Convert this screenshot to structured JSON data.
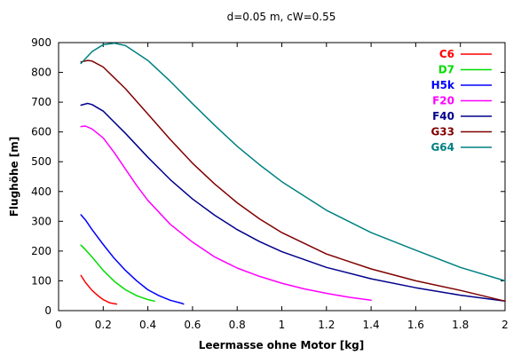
{
  "chart_data": {
    "type": "line",
    "title": "d=0.05 m, cW=0.55",
    "xlabel": "Leermasse ohne Motor [kg]",
    "ylabel": "Flughöhe [m]",
    "xlim": [
      0,
      2
    ],
    "ylim": [
      0,
      900
    ],
    "xticks": [
      0,
      0.2,
      0.4,
      0.6,
      0.8,
      1,
      1.2,
      1.4,
      1.6,
      1.8,
      2
    ],
    "xtick_labels": [
      "0",
      "0.2",
      "0.4",
      "0.6",
      "0.8",
      "1",
      "1.2",
      "1.4",
      "1.6",
      "1.8",
      "2"
    ],
    "yticks": [
      0,
      100,
      200,
      300,
      400,
      500,
      600,
      700,
      800,
      900
    ],
    "ytick_labels": [
      "0",
      "100",
      "200",
      "300",
      "400",
      "500",
      "600",
      "700",
      "800",
      "900"
    ],
    "grid": false,
    "legend_position": "top-right",
    "series": [
      {
        "name": "C6",
        "color": "#ff0000",
        "x": [
          0.1,
          0.12,
          0.15,
          0.18,
          0.2,
          0.23,
          0.26
        ],
        "y": [
          118,
          95,
          68,
          48,
          37,
          26,
          22
        ]
      },
      {
        "name": "D7",
        "color": "#00dd00",
        "x": [
          0.1,
          0.12,
          0.15,
          0.2,
          0.25,
          0.3,
          0.35,
          0.4,
          0.43
        ],
        "y": [
          220,
          205,
          180,
          135,
          98,
          70,
          50,
          37,
          32
        ]
      },
      {
        "name": "H5k",
        "color": "#0000ff",
        "x": [
          0.1,
          0.12,
          0.15,
          0.2,
          0.25,
          0.3,
          0.35,
          0.4,
          0.45,
          0.5,
          0.55,
          0.56
        ],
        "y": [
          322,
          305,
          272,
          222,
          175,
          135,
          100,
          70,
          50,
          35,
          25,
          22
        ]
      },
      {
        "name": "F20",
        "color": "#ff00ff",
        "x": [
          0.1,
          0.12,
          0.15,
          0.2,
          0.25,
          0.3,
          0.35,
          0.4,
          0.5,
          0.6,
          0.7,
          0.8,
          0.9,
          1.0,
          1.1,
          1.2,
          1.3,
          1.4
        ],
        "y": [
          618,
          620,
          610,
          580,
          530,
          475,
          420,
          370,
          290,
          230,
          180,
          143,
          115,
          92,
          73,
          58,
          45,
          35
        ]
      },
      {
        "name": "F40",
        "color": "#00008b",
        "x": [
          0.1,
          0.13,
          0.15,
          0.2,
          0.3,
          0.4,
          0.5,
          0.6,
          0.7,
          0.8,
          0.9,
          1.0,
          1.2,
          1.4,
          1.6,
          1.8,
          2.0
        ],
        "y": [
          690,
          696,
          692,
          670,
          595,
          515,
          440,
          375,
          320,
          272,
          232,
          198,
          145,
          107,
          77,
          52,
          32
        ]
      },
      {
        "name": "G33",
        "color": "#800000",
        "x": [
          0.1,
          0.13,
          0.15,
          0.2,
          0.3,
          0.4,
          0.5,
          0.6,
          0.7,
          0.8,
          0.9,
          1.0,
          1.2,
          1.4,
          1.6,
          1.8,
          2.0
        ],
        "y": [
          835,
          840,
          838,
          818,
          745,
          660,
          575,
          495,
          425,
          362,
          308,
          262,
          190,
          140,
          100,
          68,
          32
        ]
      },
      {
        "name": "G64",
        "color": "#008080",
        "x": [
          0.1,
          0.15,
          0.2,
          0.25,
          0.3,
          0.4,
          0.5,
          0.6,
          0.7,
          0.8,
          0.9,
          1.0,
          1.2,
          1.4,
          1.6,
          1.8,
          2.0
        ],
        "y": [
          830,
          870,
          893,
          898,
          890,
          840,
          770,
          695,
          622,
          552,
          490,
          433,
          337,
          262,
          203,
          145,
          100
        ]
      }
    ]
  }
}
